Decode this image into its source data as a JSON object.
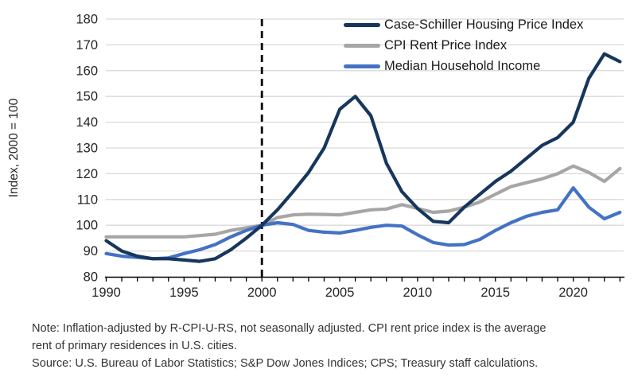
{
  "figure": {
    "note_lines": [
      "Note: Inflation-adjusted by R-CPI-U-RS, not seasonally adjusted. CPI rent price index is the average",
      "rent of primary residences in U.S. cities."
    ],
    "source": "Source: U.S. Bureau of Labor Statistics; S&P Dow Jones Indices; CPS; Treasury staff calculations."
  },
  "chart_data": {
    "type": "line",
    "title": "",
    "xlabel": "",
    "ylabel": "Index, 2000 = 100",
    "ylim": [
      80,
      180
    ],
    "ytick_step": 10,
    "grid": "horizontal",
    "grid_color": "#D9D9D9",
    "axis_color": "#000000",
    "legend_position": "top-right-inside",
    "x": [
      1990,
      1991,
      1992,
      1993,
      1994,
      1995,
      1996,
      1997,
      1998,
      1999,
      2000,
      2001,
      2002,
      2003,
      2004,
      2005,
      2006,
      2007,
      2008,
      2009,
      2010,
      2011,
      2012,
      2013,
      2014,
      2015,
      2016,
      2017,
      2018,
      2019,
      2020,
      2021,
      2022,
      2023
    ],
    "xticks_labeled": [
      1990,
      1995,
      2000,
      2005,
      2010,
      2015,
      2020
    ],
    "annotations": [
      {
        "type": "vline-dashed",
        "x": 2000,
        "color": "#000000"
      }
    ],
    "series": [
      {
        "name": "Case-Schiller Housing Price Index",
        "color": "#17365D",
        "values": [
          94,
          90,
          88,
          87,
          87,
          86.5,
          86,
          87,
          90.5,
          95,
          100,
          106,
          113,
          120.5,
          130,
          145,
          150,
          142.5,
          124,
          113,
          106.5,
          101.5,
          101,
          107,
          112,
          117,
          121,
          126,
          131,
          134,
          140,
          157,
          166.5,
          163.5
        ]
      },
      {
        "name": "CPI Rent Price Index",
        "color": "#A6A6A6",
        "values": [
          95.5,
          95.5,
          95.5,
          95.5,
          95.5,
          95.5,
          96,
          96.5,
          98,
          99,
          100,
          103,
          104,
          104.3,
          104.2,
          104,
          105,
          106,
          106.3,
          108,
          106.5,
          105,
          105.5,
          107,
          109,
          112,
          115,
          116.5,
          118,
          120,
          123,
          120.5,
          117,
          122
        ]
      },
      {
        "name": "Median Household Income",
        "color": "#4472C4",
        "values": [
          89,
          88,
          87.5,
          87,
          87.3,
          89,
          90.5,
          92.5,
          95.5,
          98,
          100,
          101,
          100.3,
          98,
          97.3,
          97,
          98,
          99.2,
          100,
          99.7,
          96.3,
          93.3,
          92.3,
          92.5,
          94.5,
          98,
          101,
          103.5,
          105,
          106,
          114.5,
          107,
          102.5,
          105
        ]
      }
    ]
  }
}
